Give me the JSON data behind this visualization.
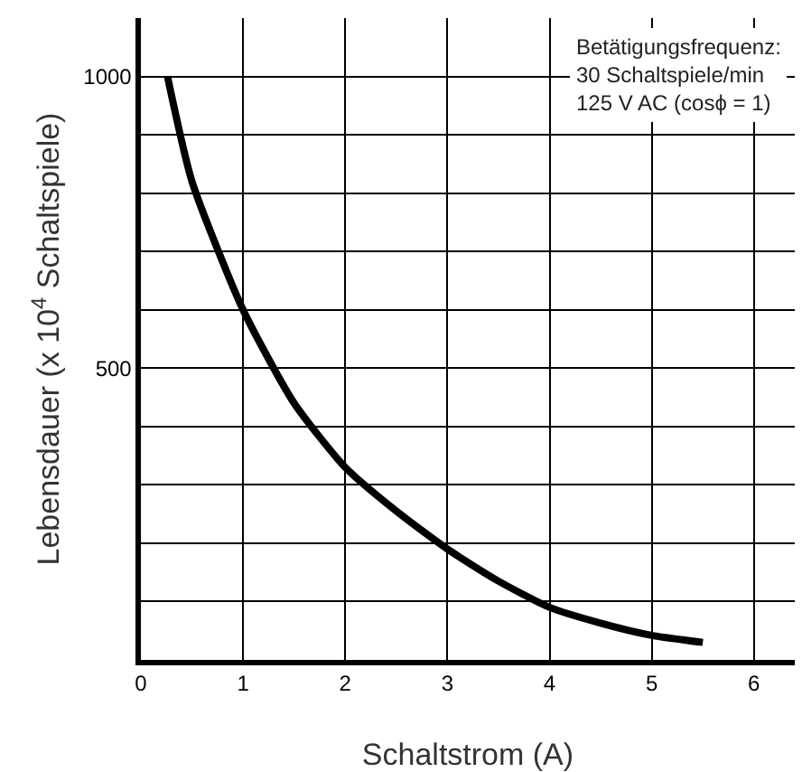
{
  "chart_data": {
    "type": "line",
    "xlabel": "Schaltstrom (A)",
    "ylabel": "Lebensdauer (x 10$^{4}$ Schaltspiele)",
    "annotations": [
      "Betätigungsfrequenz:\n30 Schaltspiele/min\n125 V AC (cosϕ = 1)"
    ],
    "series": [
      {
        "color": "#000000",
        "x": [
          0.26,
          0.5,
          1,
          1.5,
          2,
          2.5,
          3,
          3.5,
          4,
          4.5,
          5,
          5.5
        ],
        "values": [
          1000,
          820,
          600,
          440,
          330,
          255,
          190,
          135,
          90,
          63,
          42,
          30
        ]
      }
    ],
    "xlim": [
      0,
      6.4
    ],
    "ylim": [
      0,
      1100
    ],
    "xticks": [
      0,
      1,
      2,
      3,
      4,
      5,
      6
    ],
    "yticks": [
      {
        "value": 0,
        "label": null
      },
      {
        "value": 100,
        "label": null
      },
      {
        "value": 200,
        "label": null
      },
      {
        "value": 300,
        "label": null
      },
      {
        "value": 400,
        "label": null
      },
      500,
      {
        "value": 600,
        "label": null
      },
      {
        "value": 700,
        "label": null
      },
      {
        "value": 800,
        "label": null
      },
      {
        "value": 900,
        "label": null
      },
      1000
    ],
    "grid": true,
    "marker": "none",
    "line_style": "solid"
  }
}
